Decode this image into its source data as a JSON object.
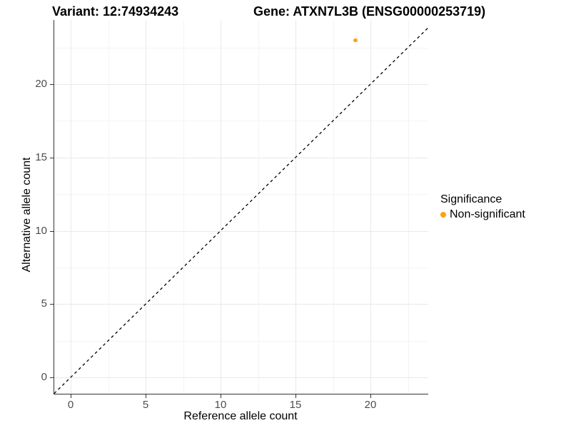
{
  "titles": {
    "variant": "Variant: 12:74934243",
    "gene": "Gene: ATXN7L3B (ENSG00000253719)"
  },
  "chart_data": {
    "type": "scatter",
    "xlabel": "Reference allele count",
    "ylabel": "Alternative allele count",
    "x_ticks": [
      0,
      5,
      10,
      15,
      20
    ],
    "y_ticks": [
      0,
      5,
      10,
      15,
      20
    ],
    "x_minor_ticks": [
      2.5,
      7.5,
      12.5,
      17.5,
      22.5
    ],
    "y_minor_ticks": [
      2.5,
      7.5,
      12.5,
      17.5,
      22.5
    ],
    "xlim": [
      -1.1,
      23.9
    ],
    "ylim": [
      -1.15,
      24.4
    ],
    "grid": true,
    "reference_line": {
      "type": "identity-diagonal",
      "slope": 1,
      "intercept": 0,
      "style": "dashed",
      "color": "#000000"
    },
    "series": [
      {
        "name": "Non-significant",
        "color": "#ffa014",
        "point_radius": 2.6,
        "points": [
          {
            "x": 19,
            "y": 23
          }
        ]
      }
    ],
    "legend": {
      "title": "Significance",
      "position": "right",
      "items": [
        {
          "label": "Non-significant",
          "color": "#ffa014"
        }
      ]
    }
  },
  "colors": {
    "grid_major": "#e9e9e9",
    "grid_minor": "#f4f4f4",
    "axis_line": "#333333",
    "tick_label": "#4d4d4d"
  }
}
